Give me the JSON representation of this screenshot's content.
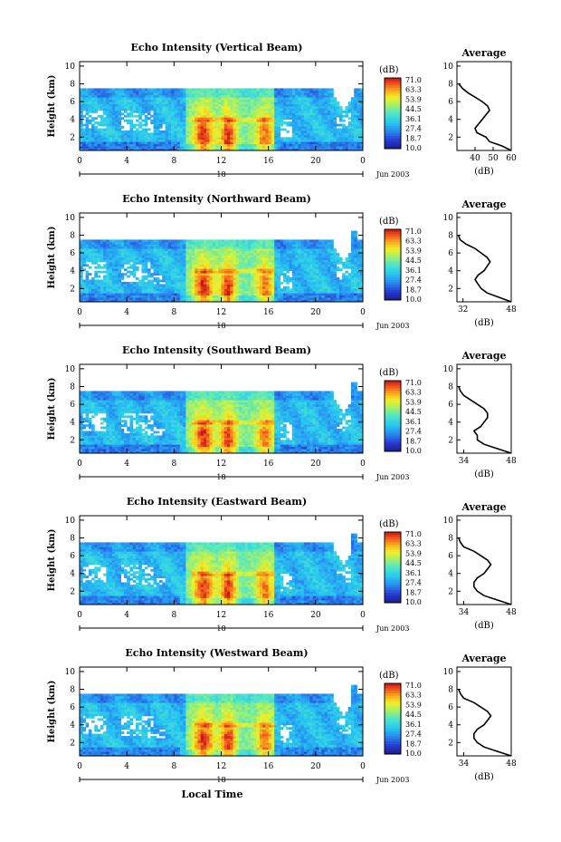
{
  "figure": {
    "xlabel_bottom": "Local Time",
    "date_label": "Jun 2003",
    "day_label": "18"
  },
  "chart_data": [
    {
      "type": "heatmap",
      "title": "Echo Intensity (Vertical Beam)",
      "ylabel": "Height (km)",
      "xlabel": "",
      "xlim": [
        0,
        24
      ],
      "ylim": [
        0.5,
        10.5
      ],
      "x_ticks": [
        "0",
        "4",
        "8",
        "12",
        "16",
        "20",
        "0"
      ],
      "y_ticks": [
        "2",
        "4",
        "6",
        "8",
        "10"
      ],
      "colorbar": {
        "unit": "(dB)",
        "labels": [
          "71.0",
          "63.3",
          "53.9",
          "44.5",
          "36.1",
          "27.4",
          "18.7",
          "10.0"
        ]
      },
      "average_profile": {
        "title": "Average",
        "xlabel": "(dB)",
        "xlim": [
          30,
          60
        ],
        "x_ticks": [
          "40",
          "50",
          "60"
        ],
        "y_ticks": [
          "2",
          "4",
          "6",
          "8",
          "10"
        ],
        "values": [
          [
            60,
            0.5
          ],
          [
            55,
            1.0
          ],
          [
            48,
            1.5
          ],
          [
            46,
            2.0
          ],
          [
            41,
            2.5
          ],
          [
            40,
            3.0
          ],
          [
            42,
            3.5
          ],
          [
            44,
            4.0
          ],
          [
            46,
            4.5
          ],
          [
            48,
            5.0
          ],
          [
            47,
            5.5
          ],
          [
            44,
            6.0
          ],
          [
            40,
            6.5
          ],
          [
            36,
            7.0
          ],
          [
            33,
            7.5
          ],
          [
            31,
            8.0
          ]
        ]
      }
    },
    {
      "type": "heatmap",
      "title": "Echo Intensity (Northward Beam)",
      "ylabel": "Height (km)",
      "xlabel": "",
      "xlim": [
        0,
        24
      ],
      "ylim": [
        0.5,
        10.5
      ],
      "x_ticks": [
        "0",
        "4",
        "8",
        "12",
        "16",
        "20",
        "0"
      ],
      "y_ticks": [
        "2",
        "4",
        "6",
        "8",
        "10"
      ],
      "colorbar": {
        "unit": "(dB)",
        "labels": [
          "71.0",
          "63.3",
          "53.9",
          "44.5",
          "36.1",
          "27.4",
          "18.7",
          "10.0"
        ]
      },
      "average_profile": {
        "title": "Average",
        "xlabel": "(dB)",
        "xlim": [
          30,
          48
        ],
        "x_ticks": [
          "32",
          "48"
        ],
        "y_ticks": [
          "2",
          "4",
          "6",
          "8",
          "10"
        ],
        "values": [
          [
            48,
            0.5
          ],
          [
            44,
            1.0
          ],
          [
            40,
            1.5
          ],
          [
            38,
            2.0
          ],
          [
            37,
            2.5
          ],
          [
            36,
            3.0
          ],
          [
            37,
            3.5
          ],
          [
            39,
            4.0
          ],
          [
            40,
            4.5
          ],
          [
            41,
            5.0
          ],
          [
            40,
            5.5
          ],
          [
            38,
            6.0
          ],
          [
            36,
            6.5
          ],
          [
            33,
            7.0
          ],
          [
            31,
            7.5
          ],
          [
            30.5,
            8.0
          ]
        ]
      }
    },
    {
      "type": "heatmap",
      "title": "Echo Intensity (Southward Beam)",
      "ylabel": "Height (km)",
      "xlabel": "",
      "xlim": [
        0,
        24
      ],
      "ylim": [
        0.5,
        10.5
      ],
      "x_ticks": [
        "0",
        "4",
        "8",
        "12",
        "16",
        "20",
        "0"
      ],
      "y_ticks": [
        "2",
        "4",
        "6",
        "8",
        "10"
      ],
      "colorbar": {
        "unit": "(dB)",
        "labels": [
          "71.0",
          "63.3",
          "53.9",
          "44.5",
          "36.1",
          "27.4",
          "18.7",
          "10.0"
        ]
      },
      "average_profile": {
        "title": "Average",
        "xlabel": "(dB)",
        "xlim": [
          32,
          48
        ],
        "x_ticks": [
          "34",
          "48"
        ],
        "y_ticks": [
          "2",
          "4",
          "6",
          "8",
          "10"
        ],
        "values": [
          [
            48,
            0.5
          ],
          [
            44,
            1.0
          ],
          [
            40,
            1.5
          ],
          [
            38,
            2.0
          ],
          [
            38,
            2.5
          ],
          [
            37,
            3.0
          ],
          [
            39,
            3.5
          ],
          [
            40,
            4.0
          ],
          [
            41,
            4.5
          ],
          [
            41,
            5.0
          ],
          [
            40,
            5.5
          ],
          [
            38,
            6.0
          ],
          [
            36,
            6.5
          ],
          [
            34,
            7.0
          ],
          [
            33,
            7.5
          ],
          [
            32.5,
            8.0
          ]
        ]
      }
    },
    {
      "type": "heatmap",
      "title": "Echo Intensity (Eastward Beam)",
      "ylabel": "Height (km)",
      "xlabel": "",
      "xlim": [
        0,
        24
      ],
      "ylim": [
        0.5,
        10.5
      ],
      "x_ticks": [
        "0",
        "4",
        "8",
        "12",
        "16",
        "20",
        "0"
      ],
      "y_ticks": [
        "2",
        "4",
        "6",
        "8",
        "10"
      ],
      "colorbar": {
        "unit": "(dB)",
        "labels": [
          "71.0",
          "63.3",
          "53.9",
          "44.5",
          "36.1",
          "27.4",
          "18.7",
          "10.0"
        ]
      },
      "average_profile": {
        "title": "Average",
        "xlabel": "(dB)",
        "xlim": [
          32,
          48
        ],
        "x_ticks": [
          "34",
          "48"
        ],
        "y_ticks": [
          "2",
          "4",
          "6",
          "8",
          "10"
        ],
        "values": [
          [
            48,
            0.5
          ],
          [
            44,
            1.0
          ],
          [
            40,
            1.5
          ],
          [
            38,
            2.0
          ],
          [
            37,
            2.5
          ],
          [
            37,
            3.0
          ],
          [
            38,
            3.5
          ],
          [
            40,
            4.0
          ],
          [
            41,
            4.5
          ],
          [
            42,
            5.0
          ],
          [
            41,
            5.5
          ],
          [
            39,
            6.0
          ],
          [
            37,
            6.5
          ],
          [
            34,
            7.0
          ],
          [
            33,
            7.5
          ],
          [
            32.5,
            8.0
          ]
        ]
      }
    },
    {
      "type": "heatmap",
      "title": "Echo Intensity (Westward Beam)",
      "ylabel": "Height (km)",
      "xlabel": "",
      "xlim": [
        0,
        24
      ],
      "ylim": [
        0.5,
        10.5
      ],
      "x_ticks": [
        "0",
        "4",
        "8",
        "12",
        "16",
        "20",
        "0"
      ],
      "y_ticks": [
        "2",
        "4",
        "6",
        "8",
        "10"
      ],
      "colorbar": {
        "unit": "(dB)",
        "labels": [
          "71.0",
          "63.3",
          "53.9",
          "44.5",
          "36.1",
          "27.4",
          "18.7",
          "10.0"
        ]
      },
      "average_profile": {
        "title": "Average",
        "xlabel": "(dB)",
        "xlim": [
          32,
          48
        ],
        "x_ticks": [
          "34",
          "48"
        ],
        "y_ticks": [
          "2",
          "4",
          "6",
          "8",
          "10"
        ],
        "values": [
          [
            48,
            0.5
          ],
          [
            44,
            1.0
          ],
          [
            40,
            1.5
          ],
          [
            38,
            2.0
          ],
          [
            37,
            2.5
          ],
          [
            37,
            3.0
          ],
          [
            38,
            3.5
          ],
          [
            40,
            4.0
          ],
          [
            41,
            4.5
          ],
          [
            42,
            5.0
          ],
          [
            41,
            5.5
          ],
          [
            39,
            6.0
          ],
          [
            37,
            6.5
          ],
          [
            34,
            7.0
          ],
          [
            33,
            7.5
          ],
          [
            32.5,
            8.0
          ]
        ]
      }
    }
  ]
}
